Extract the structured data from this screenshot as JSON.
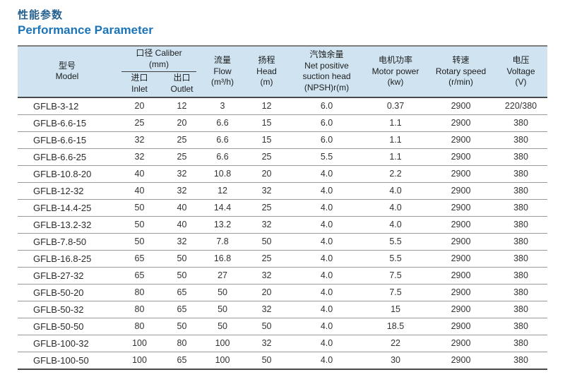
{
  "page": {
    "title_zh": "性能参数",
    "title_en": "Performance Parameter"
  },
  "colors": {
    "title_zh": "#26608f",
    "title_en": "#1c74b8",
    "header_bg": "#cfe3f1",
    "heavy_line": "#4a4a4a",
    "row_line": "#9a9a9a",
    "cell_text": "#333333"
  },
  "table": {
    "header": {
      "model_zh": "型号",
      "model_en": "Model",
      "caliber_zh_en": "口径 Caliber",
      "caliber_unit": "(mm)",
      "inlet_zh": "进口",
      "inlet_en": "Inlet",
      "outlet_zh": "出口",
      "outlet_en": "Outlet",
      "flow_zh": "流量",
      "flow_en": "Flow",
      "flow_unit": "(m³/h)",
      "head_zh": "扬程",
      "head_en": "Head",
      "head_unit": "(m)",
      "npsh_zh": "汽蚀余量",
      "npsh_en1": "Net positive",
      "npsh_en2": "suction head",
      "npsh_unit": "(NPSH)r(m)",
      "motor_zh": "电机功率",
      "motor_en": "Motor power",
      "motor_unit": "(kw)",
      "speed_zh": "转速",
      "speed_en": "Rotary speed",
      "speed_unit": "(r/min)",
      "voltage_zh": "电压",
      "voltage_en": "Voltage",
      "voltage_unit": "(V)"
    },
    "rows": [
      [
        "GFLB-3-12",
        "20",
        "12",
        "3",
        "12",
        "6.0",
        "0.37",
        "2900",
        "220/380"
      ],
      [
        "GFLB-6.6-15",
        "25",
        "20",
        "6.6",
        "15",
        "6.0",
        "1.1",
        "2900",
        "380"
      ],
      [
        "GFLB-6.6-15",
        "32",
        "25",
        "6.6",
        "15",
        "6.0",
        "1.1",
        "2900",
        "380"
      ],
      [
        "GFLB-6.6-25",
        "32",
        "25",
        "6.6",
        "25",
        "5.5",
        "1.1",
        "2900",
        "380"
      ],
      [
        "GFLB-10.8-20",
        "40",
        "32",
        "10.8",
        "20",
        "4.0",
        "2.2",
        "2900",
        "380"
      ],
      [
        "GFLB-12-32",
        "40",
        "32",
        "12",
        "32",
        "4.0",
        "4.0",
        "2900",
        "380"
      ],
      [
        "GFLB-14.4-25",
        "50",
        "40",
        "14.4",
        "25",
        "4.0",
        "4.0",
        "2900",
        "380"
      ],
      [
        "GFLB-13.2-32",
        "50",
        "40",
        "13.2",
        "32",
        "4.0",
        "4.0",
        "2900",
        "380"
      ],
      [
        "GFLB-7.8-50",
        "50",
        "32",
        "7.8",
        "50",
        "4.0",
        "5.5",
        "2900",
        "380"
      ],
      [
        "GFLB-16.8-25",
        "65",
        "50",
        "16.8",
        "25",
        "4.0",
        "5.5",
        "2900",
        "380"
      ],
      [
        "GFLB-27-32",
        "65",
        "50",
        "27",
        "32",
        "4.0",
        "7.5",
        "2900",
        "380"
      ],
      [
        "GFLB-50-20",
        "80",
        "65",
        "50",
        "20",
        "4.0",
        "7.5",
        "2900",
        "380"
      ],
      [
        "GFLB-50-32",
        "80",
        "65",
        "50",
        "32",
        "4.0",
        "15",
        "2900",
        "380"
      ],
      [
        "GFLB-50-50",
        "80",
        "50",
        "50",
        "50",
        "4.0",
        "18.5",
        "2900",
        "380"
      ],
      [
        "GFLB-100-32",
        "100",
        "80",
        "100",
        "32",
        "4.0",
        "22",
        "2900",
        "380"
      ],
      [
        "GFLB-100-50",
        "100",
        "65",
        "100",
        "50",
        "4.0",
        "30",
        "2900",
        "380"
      ]
    ]
  }
}
